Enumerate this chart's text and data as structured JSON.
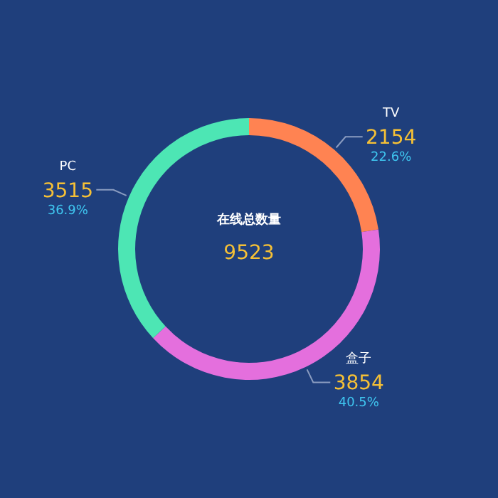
{
  "chart_data": {
    "type": "donut",
    "title": "在线总数量",
    "categories": [
      "TV",
      "盒子",
      "PC"
    ],
    "values": [
      2154,
      3854,
      3515
    ],
    "colors": [
      "#ff8352",
      "#e46fdd",
      "#4de6b4"
    ],
    "data_labels": true,
    "annotations": [
      "22.6%",
      "40.5%",
      "36.9%",
      "9523"
    ]
  }
}
